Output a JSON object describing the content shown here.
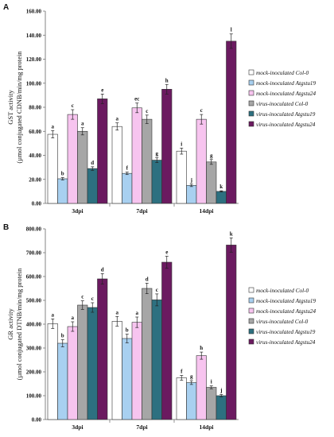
{
  "panels": [
    {
      "letter": "A",
      "ylabel_line1": "GST activity",
      "ylabel_line2": "(µmol conjugated CDNB/min/mg protein"
    },
    {
      "letter": "B",
      "ylabel_line1": "GR activity",
      "ylabel_line2": "(µmol conjugated DTNB/min/mg protein"
    }
  ],
  "colors": [
    "#ffffff",
    "#a8d0f0",
    "#f7c4ef",
    "#a6a6a6",
    "#2d7080",
    "#6b1a60"
  ],
  "chart_data": [
    {
      "type": "bar",
      "panel": "A",
      "categories": [
        "3dpi",
        "7dpi",
        "14dpi"
      ],
      "ylim": [
        0,
        160
      ],
      "yticks": [
        "0.00",
        "20.00",
        "40.00",
        "60.00",
        "80.00",
        "100.00",
        "120.00",
        "140.00",
        "160.00"
      ],
      "grid": false,
      "legend_position": "right",
      "series": [
        {
          "name": "mock-inoculated Col-0",
          "values": [
            57.5,
            64,
            43.5
          ],
          "errors": [
            3,
            3,
            2.5
          ],
          "letters": [
            "a",
            "a",
            "i"
          ]
        },
        {
          "name": "mock-inoculated Atgstu19",
          "values": [
            20.5,
            25,
            15
          ],
          "errors": [
            1,
            1,
            1
          ],
          "letters": [
            "b",
            "f",
            "j"
          ]
        },
        {
          "name": "mock-inoculated Atgstu24",
          "values": [
            74,
            79.5,
            70
          ],
          "errors": [
            4,
            4,
            4
          ],
          "letters": [
            "c",
            "ec",
            "c"
          ]
        },
        {
          "name": "virus-inoculated Col-0",
          "values": [
            60,
            70,
            34.5
          ],
          "errors": [
            3,
            3.5,
            2
          ],
          "letters": [
            "a",
            "c",
            "g"
          ]
        },
        {
          "name": "virus-inoculated Atgstu19",
          "values": [
            29,
            36,
            10
          ],
          "errors": [
            1.5,
            2,
            0.5
          ],
          "letters": [
            "d",
            "g",
            "k"
          ]
        },
        {
          "name": "virus-inoculated Atgstu24",
          "values": [
            87,
            95,
            135
          ],
          "errors": [
            4,
            4,
            6
          ],
          "letters": [
            "e",
            "h",
            "l"
          ]
        }
      ]
    },
    {
      "type": "bar",
      "panel": "B",
      "categories": [
        "3dpi",
        "7dpi",
        "14dpi"
      ],
      "ylim": [
        0,
        800
      ],
      "yticks": [
        "0.00",
        "100.00",
        "200.00",
        "300.00",
        "400.00",
        "500.00",
        "600.00",
        "700.00",
        "800.00"
      ],
      "grid": false,
      "legend_position": "right",
      "series": [
        {
          "name": "mock-inoculated Col-0",
          "values": [
            402,
            412,
            175
          ],
          "errors": [
            20,
            20,
            10
          ],
          "letters": [
            "a",
            "a",
            "f"
          ]
        },
        {
          "name": "mock-inoculated Atgstu19",
          "values": [
            320,
            340,
            155
          ],
          "errors": [
            15,
            18,
            8
          ],
          "letters": [
            "b",
            "b",
            "g"
          ]
        },
        {
          "name": "mock-inoculated Atgstu24",
          "values": [
            390,
            408,
            268
          ],
          "errors": [
            20,
            22,
            15
          ],
          "letters": [
            "a",
            "a",
            "h"
          ]
        },
        {
          "name": "virus-inoculated Col-0",
          "values": [
            480,
            550,
            135
          ],
          "errors": [
            18,
            22,
            6
          ],
          "letters": [
            "c",
            "d",
            "i"
          ]
        },
        {
          "name": "virus-inoculated Atgstu19",
          "values": [
            470,
            502,
            100
          ],
          "errors": [
            20,
            25,
            5
          ],
          "letters": [
            "c",
            "c",
            "j"
          ]
        },
        {
          "name": "virus-inoculated Atgstu24",
          "values": [
            590,
            660,
            732
          ],
          "errors": [
            22,
            25,
            30
          ],
          "letters": [
            "d",
            "e",
            "k"
          ]
        }
      ]
    }
  ]
}
